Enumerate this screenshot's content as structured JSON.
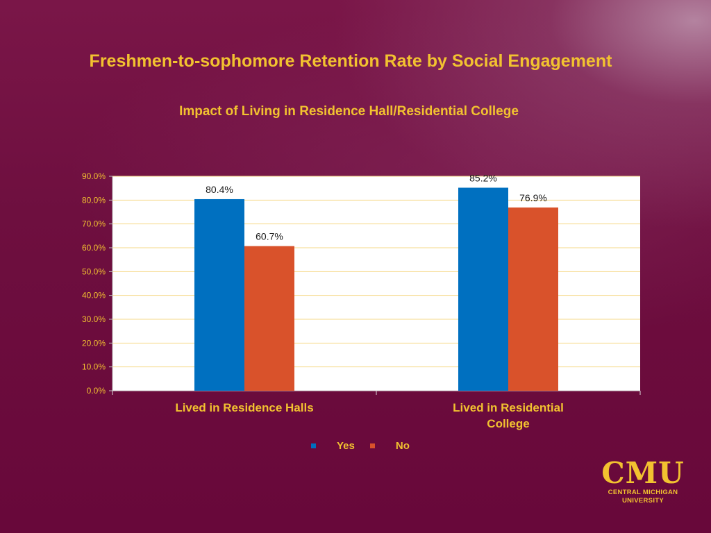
{
  "slide": {
    "title": "Freshmen-to-sophomore Retention Rate by Social Engagement",
    "subtitle": "Impact of Living in Residence Hall/Residential College"
  },
  "chart_data": {
    "type": "bar",
    "title": "Impact of Living in Residence Hall/Residential College",
    "categories": [
      "Lived in Residence Halls",
      "Lived in Residential College"
    ],
    "series": [
      {
        "name": "Yes",
        "color": "#0070c0",
        "values": [
          80.4,
          85.2
        ],
        "labels": [
          "80.4%",
          "85.2%"
        ]
      },
      {
        "name": "No",
        "color": "#d9522b",
        "values": [
          60.7,
          76.9
        ],
        "labels": [
          "60.7%",
          "76.9%"
        ]
      }
    ],
    "ylim": [
      0,
      90
    ],
    "yticks": [
      "0.0%",
      "10.0%",
      "20.0%",
      "30.0%",
      "40.0%",
      "50.0%",
      "60.0%",
      "70.0%",
      "80.0%",
      "90.0%"
    ],
    "grid": true,
    "legend": "bottom",
    "gridline_color": "#f6d98a",
    "plot_background": "#ffffff"
  },
  "logo": {
    "main": "CMU",
    "line1": "CENTRAL MICHIGAN",
    "line2": "UNIVERSITY"
  }
}
